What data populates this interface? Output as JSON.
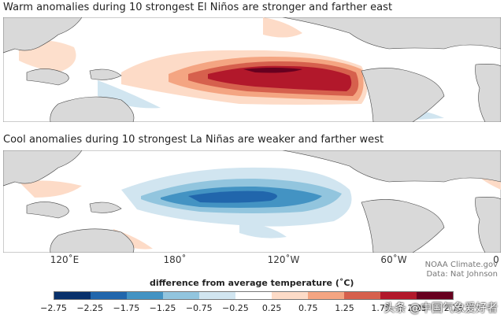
{
  "titles": {
    "top": "Warm anomalies during 10 strongest El Niños are stronger and farther east",
    "bottom": "Cool anomalies during 10 strongest La Niñas are weaker and farther west"
  },
  "longitude_labels": [
    "120˚E",
    "180˚",
    "120˚W",
    "60˚W",
    "0"
  ],
  "credits": {
    "source": "NOAA Climate.gov",
    "author": "Data: Nat Johnson"
  },
  "legend": {
    "title": "difference from average temperature (˚C)",
    "ticks": [
      "−2.75",
      "−2.25",
      "−1.75",
      "−1.25",
      "−0.75",
      "−0.25",
      "0.25",
      "0.75",
      "1.25",
      "1.75",
      "2.25",
      "2.75"
    ],
    "colors": [
      "#08306b",
      "#2166ac",
      "#4393c3",
      "#92c5de",
      "#d1e5f0",
      "#ffffff",
      "#fddbc7",
      "#f4a582",
      "#d6604d",
      "#b2182b",
      "#67001f"
    ]
  },
  "watermark": "头条 @中国气象爱好者",
  "colors": {
    "land": "#d9d9d9",
    "ocean": "#ffffff",
    "warm": [
      "#fddbc7",
      "#f4a582",
      "#d6604d",
      "#b2182b",
      "#67001f"
    ],
    "cool": [
      "#d1e5f0",
      "#92c5de",
      "#4393c3",
      "#2166ac",
      "#08306b"
    ]
  }
}
